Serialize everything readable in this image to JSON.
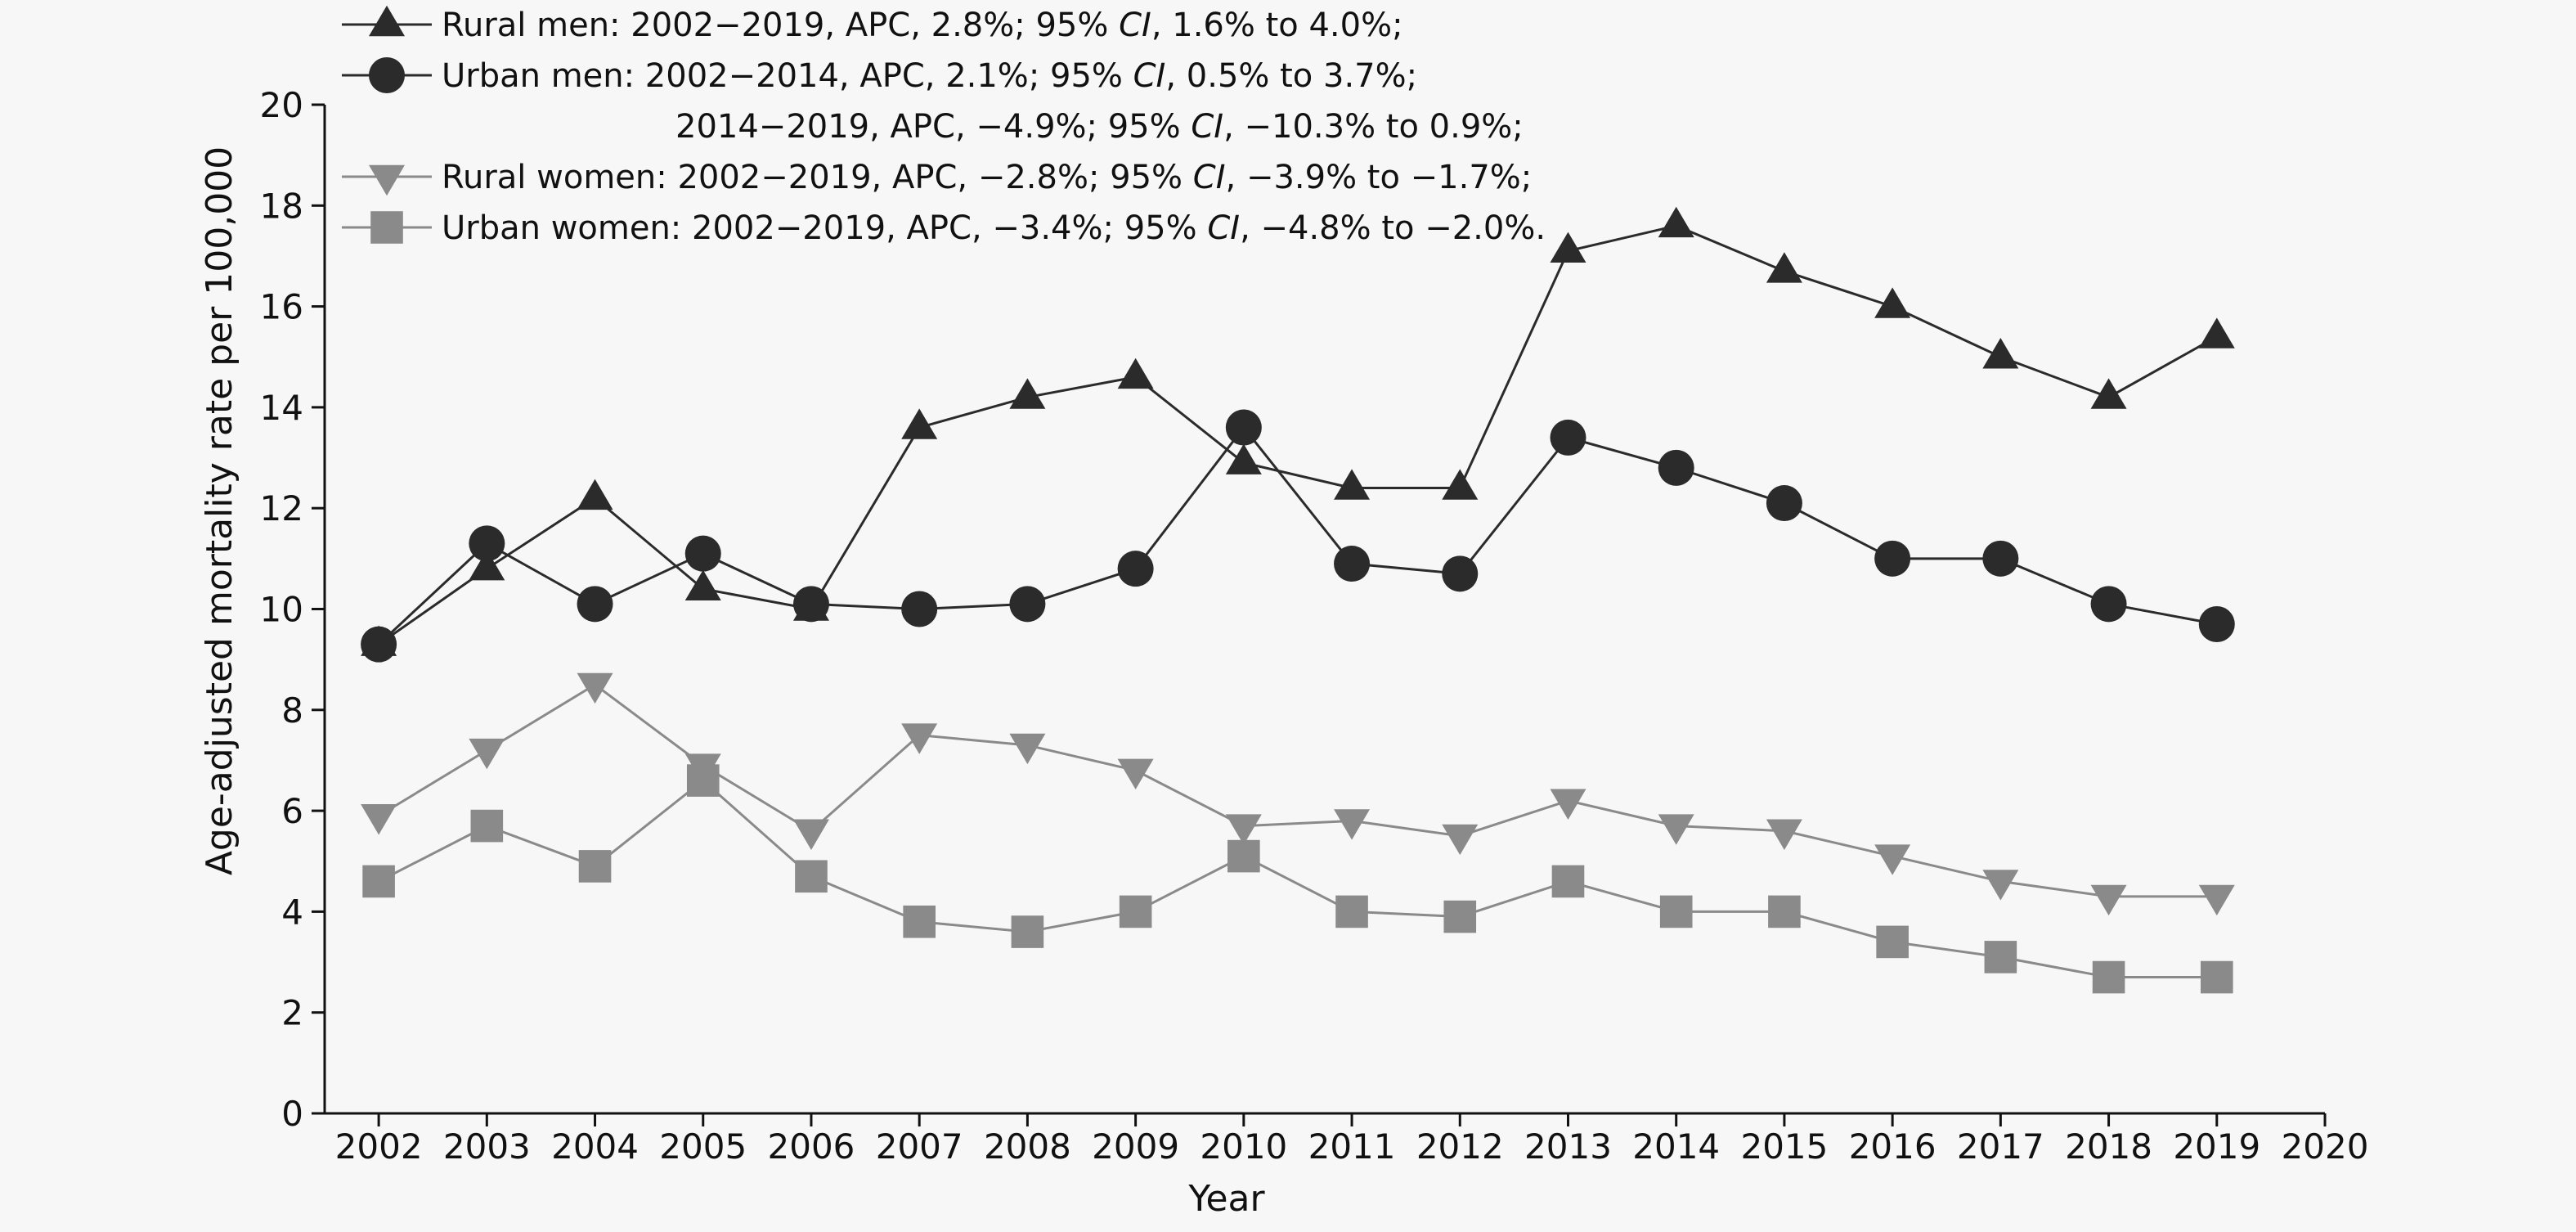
{
  "chart_data": {
    "type": "line",
    "xlabel": "Year",
    "ylabel": "Age-adjusted mortality rate per 100,000",
    "x": [
      2002,
      2003,
      2004,
      2005,
      2006,
      2007,
      2008,
      2009,
      2010,
      2011,
      2012,
      2013,
      2014,
      2015,
      2016,
      2017,
      2018,
      2019
    ],
    "xlim": [
      2001.5,
      2020
    ],
    "xticks": [
      "2002",
      "2003",
      "2004",
      "2005",
      "2006",
      "2007",
      "2008",
      "2009",
      "2010",
      "2011",
      "2012",
      "2013",
      "2014",
      "2015",
      "2016",
      "2017",
      "2018",
      "2019",
      "2020"
    ],
    "ylim": [
      0,
      20
    ],
    "yticks": [
      "0",
      "2",
      "4",
      "6",
      "8",
      "10",
      "12",
      "14",
      "16",
      "18",
      "20"
    ],
    "grid": false,
    "legend_position": "top-left",
    "series": [
      {
        "name": "Rural men",
        "legend_text": "Rural men: 2002−2019, APC, 2.8%; 95% CI, 1.6% to 4.0%;",
        "marker": "triangle-up",
        "color": "#2b2b2b",
        "values": [
          9.3,
          10.8,
          12.2,
          10.4,
          10.0,
          13.6,
          14.2,
          14.6,
          12.9,
          12.4,
          12.4,
          17.1,
          17.6,
          16.7,
          16.0,
          15.0,
          14.2,
          15.4
        ]
      },
      {
        "name": "Urban men",
        "legend_text": "Urban men: 2002−2014, APC, 2.1%; 95% CI, 0.5% to 3.7%;",
        "legend_text_2": "2014−2019, APC, −4.9%; 95% CI, −10.3% to 0.9%;",
        "marker": "circle",
        "color": "#2b2b2b",
        "values": [
          9.3,
          11.3,
          10.1,
          11.1,
          10.1,
          10.0,
          10.1,
          10.8,
          13.6,
          10.9,
          10.7,
          13.4,
          12.8,
          12.1,
          11.0,
          11.0,
          10.1,
          9.7
        ]
      },
      {
        "name": "Rural women",
        "legend_text": "Rural women: 2002−2019, APC, −2.8%; 95% CI, −3.9% to −1.7%;",
        "marker": "triangle-down",
        "color": "#8a8a8a",
        "values": [
          5.9,
          7.2,
          8.5,
          6.9,
          5.6,
          7.5,
          7.3,
          6.8,
          5.7,
          5.8,
          5.5,
          6.2,
          5.7,
          5.6,
          5.1,
          4.6,
          4.3,
          4.3
        ]
      },
      {
        "name": "Urban women",
        "legend_text": "Urban women: 2002−2019, APC, −3.4%; 95% CI, −4.8% to −2.0%.",
        "marker": "square",
        "color": "#8a8a8a",
        "values": [
          4.6,
          5.7,
          4.9,
          6.6,
          4.7,
          3.8,
          3.6,
          4.0,
          5.1,
          4.0,
          3.9,
          4.6,
          4.0,
          4.0,
          3.4,
          3.1,
          2.7,
          2.7
        ]
      }
    ]
  }
}
